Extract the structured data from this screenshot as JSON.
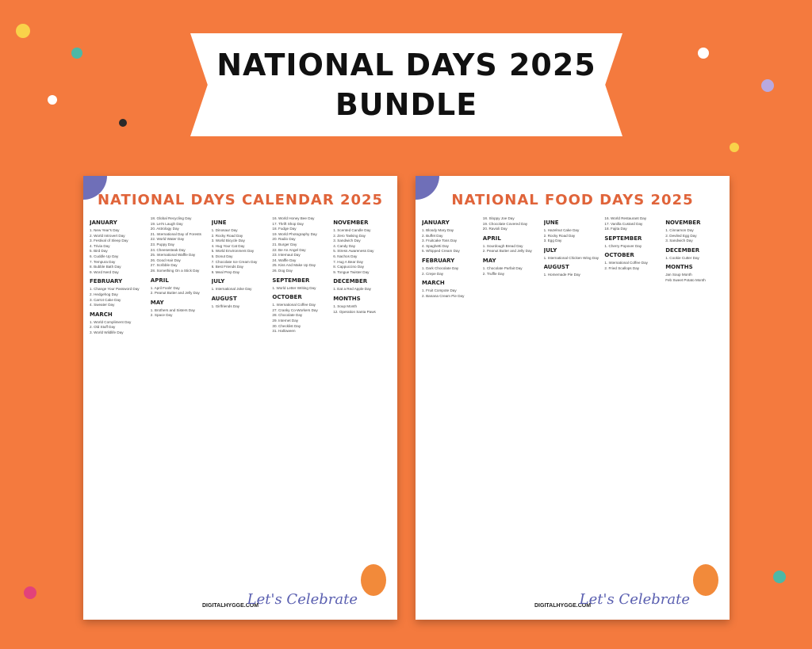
{
  "banner": {
    "line1": "NATIONAL DAYS 2025",
    "line2": "BUNDLE"
  },
  "colors": {
    "background": "#f47a3e",
    "title": "#e0643a"
  },
  "pages": [
    {
      "title": "NATIONAL DAYS CALENDAR 2025",
      "footer": "DIGITALHYGGE.COM",
      "celebrate": "Let's Celebrate",
      "columns": [
        [
          {
            "month": "JANUARY",
            "items": [
              "1. New Year's Day",
              "2. World Introvert Day",
              "3. Festival of Sleep Day",
              "4. Trivia Day",
              "5. Bird Day",
              "6. Cuddle Up Day",
              "7. Tempura Day",
              "8. Bubble Bath Day",
              "9. Word Nerd Day"
            ]
          },
          {
            "month": "FEBRUARY",
            "items": [
              "1. Change Your Password Day",
              "2. Hedgehog Day",
              "3. Carrot Cake Day",
              "4. Sweater Day"
            ]
          },
          {
            "month": "MARCH",
            "items": [
              "1. World Compliment Day",
              "2. Old Stuff Day",
              "3. World Wildlife Day"
            ]
          }
        ],
        [
          {
            "month": "",
            "items": [
              "18. Global Recycling Day",
              "19. Let's Laugh Day",
              "20. Astrology Day",
              "21. International Day of Forests",
              "22. World Water Day",
              "23. Puppy Day",
              "24. Cheesesteak Day",
              "25. International Waffle Day",
              "26. Good Hair Day",
              "27. Scribble Day",
              "28. Something On a Stick Day"
            ]
          },
          {
            "month": "APRIL",
            "items": [
              "1. April Fools' Day",
              "2. Peanut Butter and Jelly Day"
            ]
          },
          {
            "month": "MAY",
            "items": [
              "1. Brothers and Sisters Day",
              "2. Space Day"
            ]
          }
        ],
        [
          {
            "month": "JUNE",
            "items": [
              "1. Dinosaur Day",
              "2. Rocky Road Day",
              "3. World Bicycle Day",
              "4. Hug Your Cat Day",
              "5. World Environment Day",
              "6. Donut Day",
              "7. Chocolate Ice Cream Day",
              "8. Best Friends Day",
              "9. Meal Prep Day"
            ]
          },
          {
            "month": "JULY",
            "items": [
              "1. International Joke Day"
            ]
          },
          {
            "month": "AUGUST",
            "items": [
              "1. Girlfriends Day"
            ]
          }
        ],
        [
          {
            "month": "",
            "items": [
              "16. World Honey Bee Day",
              "17. Thrift Shop Day",
              "18. Fudge Day",
              "19. World Photography Day",
              "20. Radio Day",
              "21. Burger Day",
              "22. Be An Angel Day",
              "23. Internaut Day",
              "24. Waffle Day",
              "25. Kiss And Make Up Day",
              "26. Dog Day"
            ]
          },
          {
            "month": "SEPTEMBER",
            "items": [
              "1. World Letter Writing Day"
            ]
          },
          {
            "month": "OCTOBER",
            "items": [
              "1. International Coffee Day",
              "27. Cranky Co-Workers Day",
              "28. Chocolate Day",
              "29. Internet Day",
              "30. Checklist Day",
              "31. Halloween"
            ]
          }
        ],
        [
          {
            "month": "NOVEMBER",
            "items": [
              "1. Scented Candle Day",
              "2. Zero Tasking Day",
              "3. Sandwich Day",
              "4. Candy Day",
              "5. Stress Awareness Day",
              "6. Nachos Day",
              "7. Hug A Bear Day",
              "8. Cappuccino Day",
              "9. Tongue Twister Day"
            ]
          },
          {
            "month": "DECEMBER",
            "items": [
              "1. Eat a Red Apple Day"
            ]
          },
          {
            "month": "MONTHS",
            "items": [
              "1. Soup Month",
              "12. Operation Santa Paws"
            ]
          }
        ]
      ]
    },
    {
      "title": "NATIONAL FOOD DAYS 2025",
      "footer": "DIGITALHYGGE.COM",
      "celebrate": "Let's Celebrate",
      "columns": [
        [
          {
            "month": "JANUARY",
            "items": [
              "1. Bloody Mary Day",
              "2. Buffet Day",
              "3. Fruitcake Toss Day",
              "4. Spaghetti Day",
              "5. Whipped Cream Day"
            ]
          },
          {
            "month": "FEBRUARY",
            "items": [
              "1. Dark Chocolate Day",
              "2. Crepe Day"
            ]
          },
          {
            "month": "MARCH",
            "items": [
              "1. Fruit Compote Day",
              "2. Banana Cream Pie Day"
            ]
          }
        ],
        [
          {
            "month": "",
            "items": [
              "18. Sloppy Joe Day",
              "19. Chocolate Covered Day",
              "20. Ravioli Day"
            ]
          },
          {
            "month": "APRIL",
            "items": [
              "1. Sourdough Bread Day",
              "2. Peanut Butter and Jelly Day"
            ]
          },
          {
            "month": "MAY",
            "items": [
              "1. Chocolate Parfait Day",
              "2. Truffle Day"
            ]
          }
        ],
        [
          {
            "month": "JUNE",
            "items": [
              "1. Hazelnut Cake Day",
              "2. Rocky Road Day",
              "3. Egg Day"
            ]
          },
          {
            "month": "JULY",
            "items": [
              "1. International Chicken Wing Day"
            ]
          },
          {
            "month": "AUGUST",
            "items": [
              "1. Homemade Pie Day"
            ]
          }
        ],
        [
          {
            "month": "",
            "items": [
              "16. World Restaurant Day",
              "17. Vanilla Custard Day",
              "18. Fajita Day"
            ]
          },
          {
            "month": "SEPTEMBER",
            "items": [
              "1. Cherry Popover Day"
            ]
          },
          {
            "month": "OCTOBER",
            "items": [
              "1. International Coffee Day",
              "2. Fried Scallops Day"
            ]
          }
        ],
        [
          {
            "month": "NOVEMBER",
            "items": [
              "1. Cinnamon Day",
              "2. Deviled Egg Day",
              "3. Sandwich Day"
            ]
          },
          {
            "month": "DECEMBER",
            "items": [
              "1. Cookie Cutter Day"
            ]
          },
          {
            "month": "MONTHS",
            "items": [
              "Jan Soup Month",
              "Feb Sweet Potato Month"
            ]
          }
        ]
      ]
    }
  ]
}
